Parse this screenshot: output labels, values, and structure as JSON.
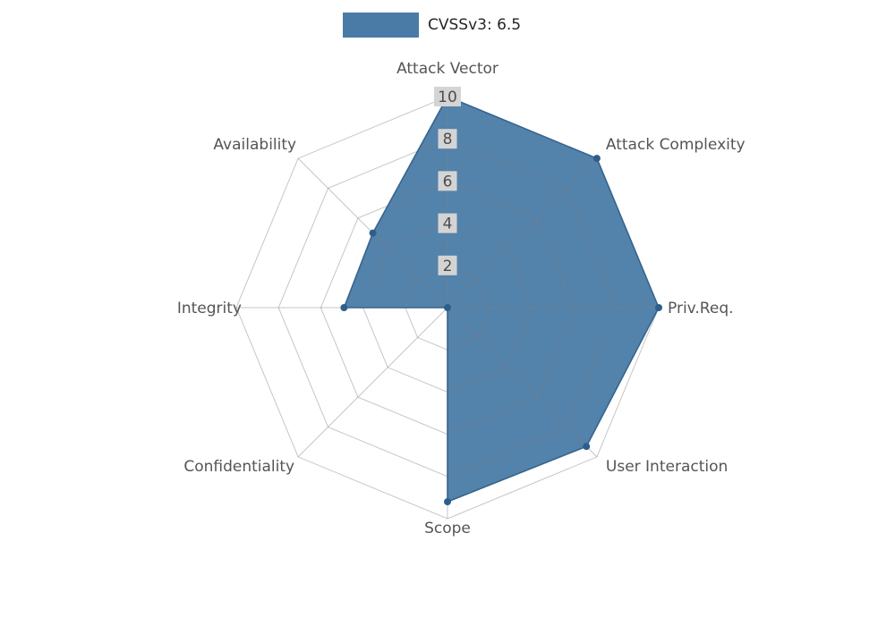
{
  "legend": {
    "label": "CVSSv3: 6.5",
    "swatch_color": "#4a7ba6"
  },
  "chart_data": {
    "type": "radar",
    "title": "CVSSv3: 6.5",
    "categories": [
      "Attack Vector",
      "Attack Complexity",
      "Priv.Req.",
      "User Interaction",
      "Scope",
      "Confidentiality",
      "Integrity",
      "Availability"
    ],
    "series": [
      {
        "name": "CVSSv3: 6.5",
        "values": [
          10,
          10,
          10,
          9.3,
          9.2,
          0,
          4.9,
          5.0
        ]
      }
    ],
    "ticks": [
      2,
      4,
      6,
      8,
      10
    ],
    "rmax": 10,
    "grid": true,
    "start_angle_deg": 90,
    "direction": "clockwise",
    "legend_position": "top",
    "colors": {
      "fill": "#4a7ba6",
      "outline": "#36648e",
      "marker": "#2e5e8c",
      "grid": "#808080",
      "tick_label": "#4d4d4d",
      "tick_box": "#d4d4d4",
      "axis_label": "#555555"
    }
  }
}
